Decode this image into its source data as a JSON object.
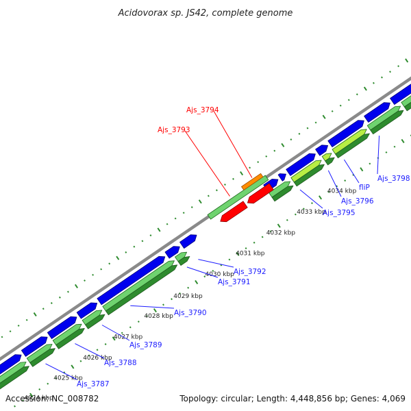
{
  "title": "Acidovorax sp. JS42, complete genome",
  "footer": {
    "accession": "Accession: NC_008782",
    "summary": "Topology: circular; Length: 4,448,856 bp; Genes: 4,069"
  },
  "colors": {
    "backbone": "#8a8a8a",
    "cds_forward": "#0000ee",
    "cds_reverse": "#ff0000",
    "cds_other": "#ff8c00",
    "gene_light": "#6fd36f",
    "gene_dark": "#2e8b2e",
    "gene_bright": "#b8ee44",
    "tick": "#2e8b2e",
    "label_blue": "#1a1aff",
    "label_red": "#ff0000"
  },
  "scale_labels": [
    "4024 kbp",
    "4025 kbp",
    "4026 kbp",
    "4027 kbp",
    "4028 kbp",
    "4029 kbp",
    "4030 kbp",
    "4031 kbp",
    "4032 kbp",
    "4033 kbp",
    "4034 kbp"
  ],
  "genes": [
    {
      "name": "Ajs_3787",
      "color": "blue"
    },
    {
      "name": "Ajs_3788",
      "color": "blue"
    },
    {
      "name": "Ajs_3789",
      "color": "blue"
    },
    {
      "name": "Ajs_3790",
      "color": "blue"
    },
    {
      "name": "Ajs_3791",
      "color": "blue"
    },
    {
      "name": "Ajs_3792",
      "color": "blue"
    },
    {
      "name": "Ajs_3793",
      "color": "red"
    },
    {
      "name": "Ajs_3794",
      "color": "red"
    },
    {
      "name": "Ajs_3795",
      "color": "blue"
    },
    {
      "name": "Ajs_3796",
      "color": "blue"
    },
    {
      "name": "fliP",
      "color": "blue"
    },
    {
      "name": "Ajs_3798",
      "color": "blue"
    }
  ]
}
